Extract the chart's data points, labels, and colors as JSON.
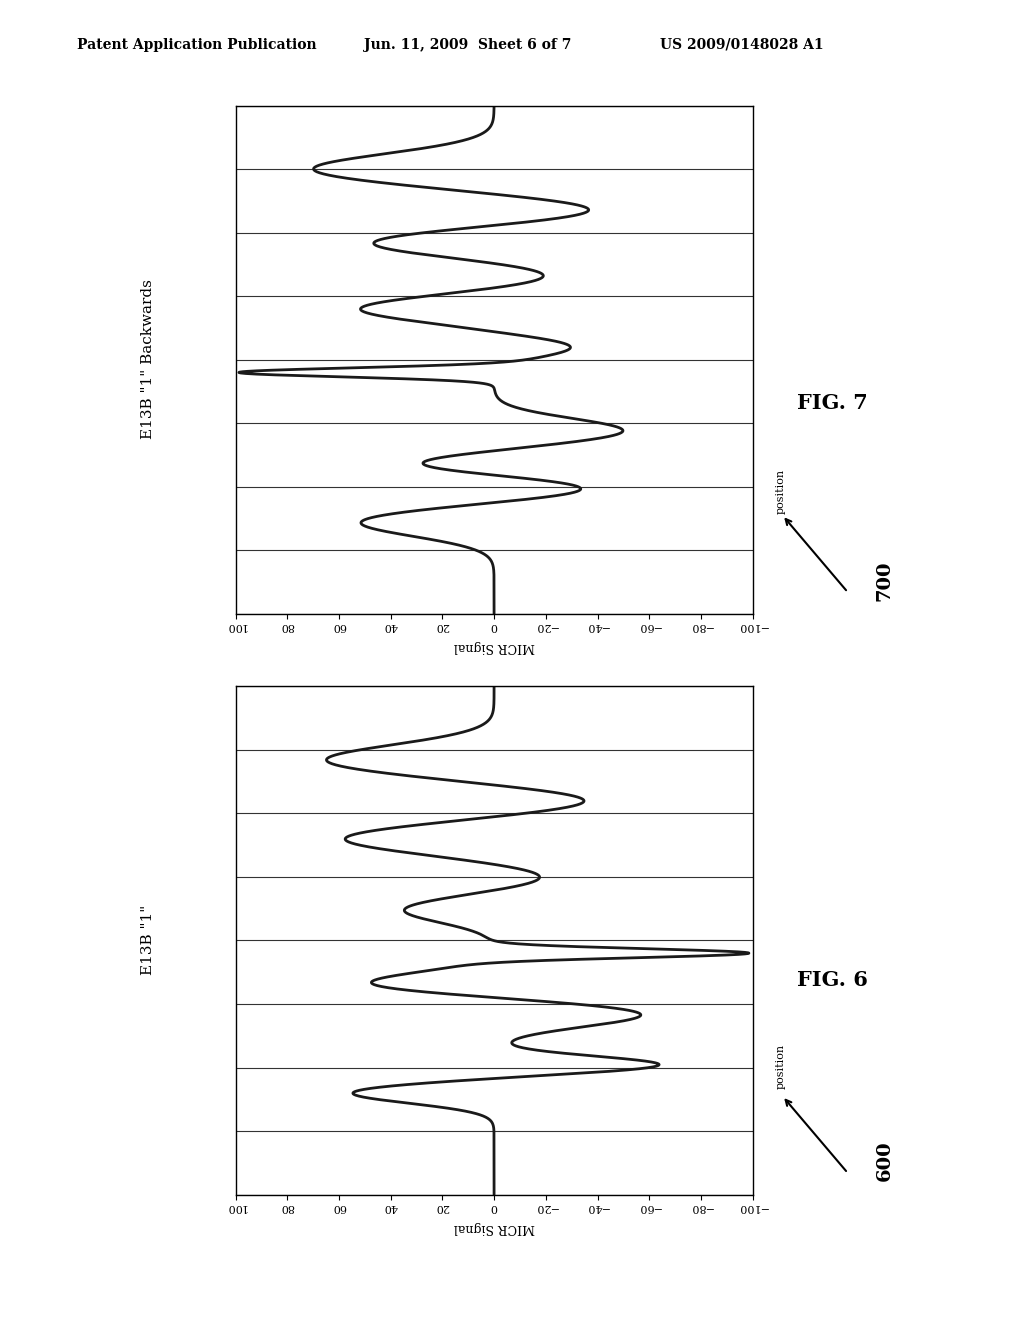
{
  "header_left": "Patent Application Publication",
  "header_mid": "Jun. 11, 2009  Sheet 6 of 7",
  "header_right": "US 2009/0148028 A1",
  "fig6_title": "E13B \"1\"",
  "fig7_title": "E13B \"1\" Backwards",
  "fig6_label": "FIG. 6",
  "fig7_label": "FIG. 7",
  "ref6": "600",
  "ref7": "700",
  "micr_label": "MICR Signal",
  "pos_label": "position",
  "xticks": [
    100,
    80,
    60,
    40,
    20,
    0,
    -20,
    -40,
    -60,
    -80,
    -100
  ],
  "xlim_left": 100,
  "xlim_right": -100,
  "num_vlines": 9,
  "bg_color": "#ffffff",
  "line_color": "#1a1a1a",
  "grid_color": "#333333",
  "text_color": "#000000"
}
